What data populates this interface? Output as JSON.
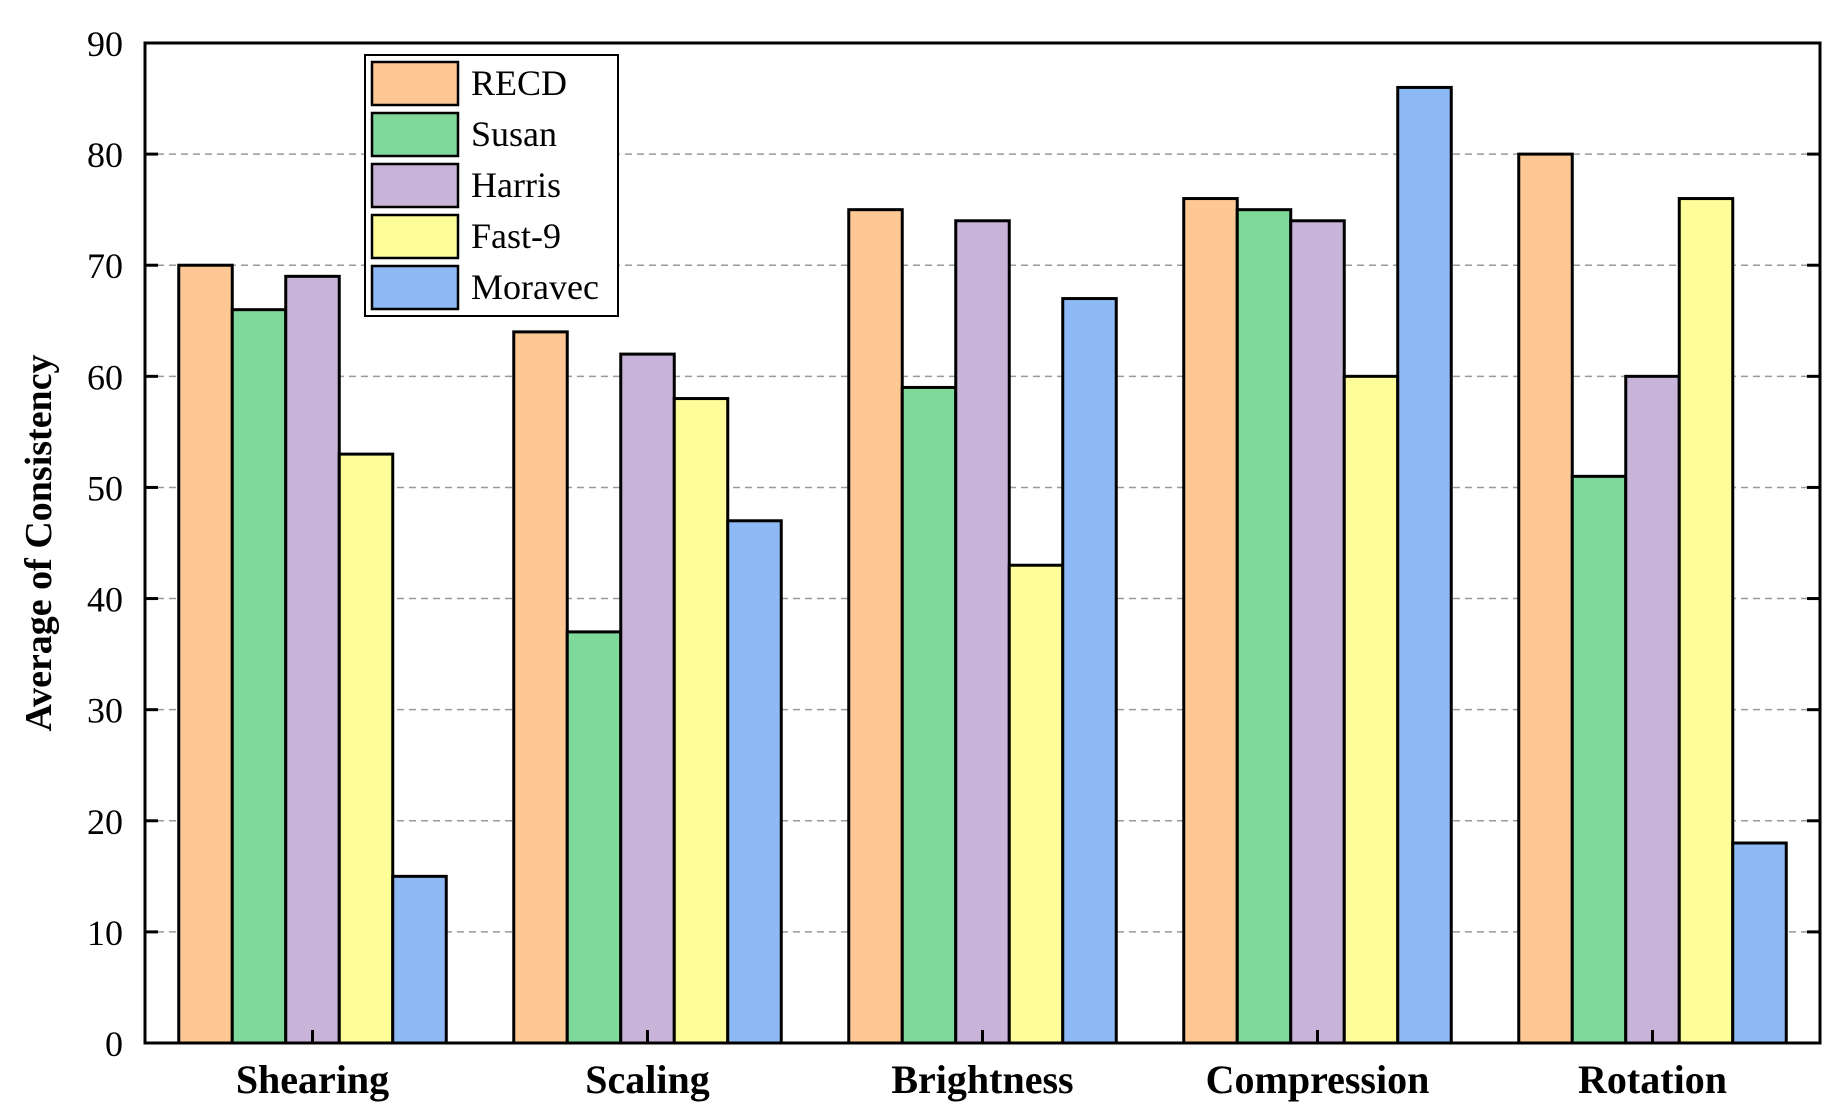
{
  "chart_data": {
    "type": "bar",
    "title": "",
    "xlabel": "",
    "ylabel": "Average of Consistency",
    "ylim": [
      0,
      90
    ],
    "yticks": [
      0,
      10,
      20,
      30,
      40,
      50,
      60,
      70,
      80,
      90
    ],
    "grid": true,
    "legend_position": "top-left",
    "categories": [
      "Shearing",
      "Scaling",
      "Brightness",
      "Compression",
      "Rotation"
    ],
    "series": [
      {
        "name": "RECD",
        "color": "#FDC894",
        "values": [
          70,
          64,
          75,
          76,
          80
        ]
      },
      {
        "name": "Susan",
        "color": "#7FD99A",
        "values": [
          66,
          37,
          59,
          75,
          51
        ]
      },
      {
        "name": "Harris",
        "color": "#C8B3D9",
        "values": [
          69,
          62,
          74,
          74,
          60
        ]
      },
      {
        "name": "Fast-9",
        "color": "#FDFD99",
        "values": [
          53,
          58,
          43,
          60,
          76
        ]
      },
      {
        "name": "Moravec",
        "color": "#8DBAF5",
        "values": [
          15,
          47,
          67,
          86,
          18
        ]
      }
    ]
  }
}
